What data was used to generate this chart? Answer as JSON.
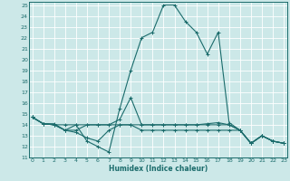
{
  "xlabel": "Humidex (Indice chaleur)",
  "bg_color": "#cce8e8",
  "grid_color": "#ffffff",
  "line_color": "#1a6b6b",
  "xlim": [
    -0.3,
    23.3
  ],
  "ylim": [
    11,
    25.3
  ],
  "xticks": [
    0,
    1,
    2,
    3,
    4,
    5,
    6,
    7,
    8,
    9,
    10,
    11,
    12,
    13,
    14,
    15,
    16,
    17,
    18,
    19,
    20,
    21,
    22,
    23
  ],
  "yticks": [
    11,
    12,
    13,
    14,
    15,
    16,
    17,
    18,
    19,
    20,
    21,
    22,
    23,
    24,
    25
  ],
  "lines": [
    {
      "x": [
        0,
        1,
        2,
        3,
        4,
        5,
        6,
        7,
        8,
        9,
        10,
        11,
        12,
        13,
        14,
        15,
        16,
        17,
        18,
        19,
        20,
        21,
        22,
        23
      ],
      "y": [
        14.7,
        14.1,
        14.1,
        13.5,
        14.0,
        12.5,
        12.0,
        11.5,
        15.5,
        19.0,
        22.0,
        22.5,
        25.0,
        25.0,
        23.5,
        22.5,
        20.5,
        22.5,
        14.2,
        13.5,
        12.3,
        13.0,
        12.5,
        12.3
      ]
    },
    {
      "x": [
        0,
        1,
        2,
        3,
        4,
        5,
        6,
        7,
        8,
        9,
        10,
        11,
        12,
        13,
        14,
        15,
        16,
        17,
        18,
        19,
        20,
        21,
        22,
        23
      ],
      "y": [
        14.7,
        14.1,
        14.0,
        14.0,
        14.0,
        14.0,
        14.0,
        14.0,
        14.0,
        14.0,
        14.0,
        14.0,
        14.0,
        14.0,
        14.0,
        14.0,
        14.1,
        14.2,
        14.0,
        13.5,
        12.3,
        13.0,
        12.5,
        12.3
      ]
    },
    {
      "x": [
        0,
        1,
        2,
        3,
        4,
        5,
        6,
        7,
        8,
        9,
        10,
        11,
        12,
        13,
        14,
        15,
        16,
        17,
        18,
        19,
        20,
        21,
        22,
        23
      ],
      "y": [
        14.7,
        14.1,
        14.0,
        13.5,
        13.3,
        12.8,
        12.5,
        13.5,
        14.0,
        14.0,
        13.5,
        13.5,
        13.5,
        13.5,
        13.5,
        13.5,
        13.5,
        13.5,
        13.5,
        13.5,
        12.3,
        13.0,
        12.5,
        12.3
      ]
    },
    {
      "x": [
        0,
        1,
        2,
        3,
        4,
        5,
        6,
        7,
        8,
        9,
        10,
        11,
        12,
        13,
        14,
        15,
        16,
        17,
        18,
        19,
        20,
        21,
        22,
        23
      ],
      "y": [
        14.7,
        14.1,
        14.0,
        13.5,
        13.5,
        14.0,
        14.0,
        14.0,
        14.5,
        16.5,
        14.0,
        14.0,
        14.0,
        14.0,
        14.0,
        14.0,
        14.0,
        14.0,
        14.0,
        13.5,
        12.3,
        13.0,
        12.5,
        12.3
      ]
    }
  ]
}
